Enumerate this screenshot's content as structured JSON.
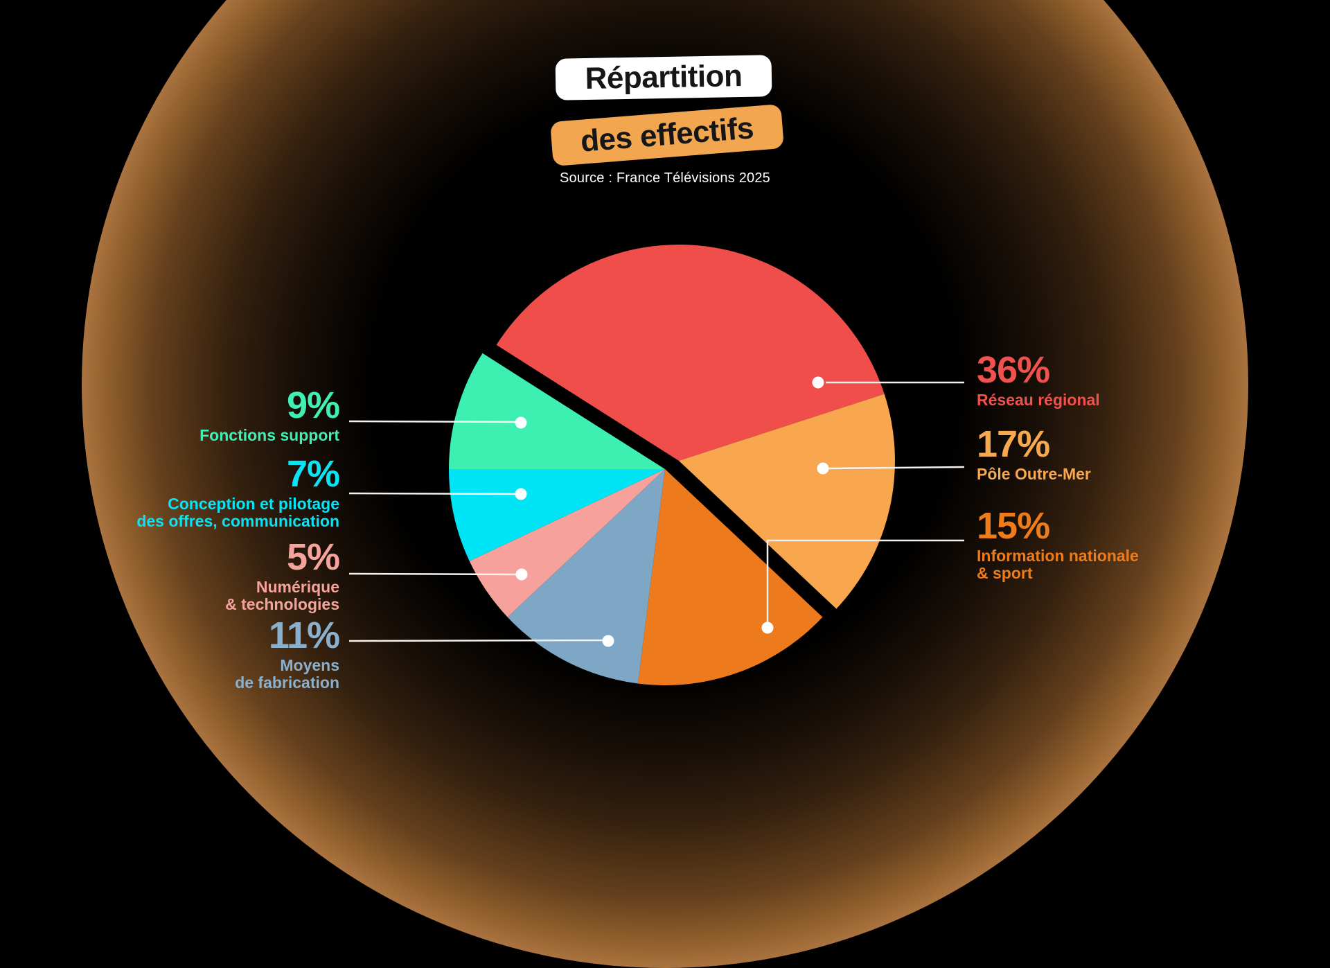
{
  "title": {
    "badge1": "Répartition",
    "badge2": "des effectifs"
  },
  "source": "Source : France Télévisions 2025",
  "colors": {
    "background": "#000000",
    "glow": "#AA7340",
    "leader_line": "#F5F2EE",
    "leader_dot": "#FFFFFF",
    "badge1_bg": "#FFFFFF",
    "badge2_bg": "#F3A650",
    "badge_text": "#161616",
    "source_text": "#FFFFFF"
  },
  "chart_data": {
    "type": "pie",
    "title": "Répartition des effectifs",
    "source": "Source : France Télévisions 2025",
    "unit": "%",
    "start_angle_deg": 302.4,
    "clockwise": true,
    "legend_position": "callouts around pie",
    "exploded_note": "slices 'Réseau régional' and 'Pôle Outre-Mer' are offset toward the upper right, separated from the rest by a black gap",
    "slices": [
      {
        "label": "Réseau régional",
        "value": 36,
        "color": "#EF4E4B",
        "group": "exploded"
      },
      {
        "label": "Pôle Outre-Mer",
        "value": 17,
        "color": "#F8A74E",
        "group": "exploded"
      },
      {
        "label": "Information nationale & sport",
        "value": 15,
        "color": "#ED7A1C",
        "group": "base"
      },
      {
        "label": "Moyens de fabrication",
        "value": 11,
        "color": "#7EA6C5",
        "group": "base"
      },
      {
        "label": "Numérique & technologies",
        "value": 5,
        "color": "#F7A19C",
        "group": "base"
      },
      {
        "label": "Conception et pilotage des offres, communication",
        "value": 7,
        "color": "#00E5F5",
        "group": "base"
      },
      {
        "label": "Fonctions support",
        "value": 9,
        "color": "#3EEFB2",
        "group": "base"
      }
    ]
  },
  "callouts": [
    {
      "pct": "36%",
      "lines": [
        "Réseau régional"
      ],
      "color": "#F2524E",
      "side": "right"
    },
    {
      "pct": "17%",
      "lines": [
        "Pôle Outre-Mer"
      ],
      "color": "#F8A84F",
      "side": "right"
    },
    {
      "pct": "15%",
      "lines": [
        "Information nationale",
        "& sport"
      ],
      "color": "#EE7C1B",
      "side": "right"
    },
    {
      "pct": "9%",
      "lines": [
        "Fonctions support"
      ],
      "color": "#40EFB3",
      "side": "left"
    },
    {
      "pct": "7%",
      "lines": [
        "Conception et pilotage",
        "des offres, communication"
      ],
      "color": "#0AE3F3",
      "side": "left"
    },
    {
      "pct": "5%",
      "lines": [
        "Numérique",
        "& technologies"
      ],
      "color": "#F6A39D",
      "side": "left"
    },
    {
      "pct": "11%",
      "lines": [
        "Moyens",
        "de fabrication"
      ],
      "color": "#8AB0CF",
      "side": "left"
    }
  ]
}
